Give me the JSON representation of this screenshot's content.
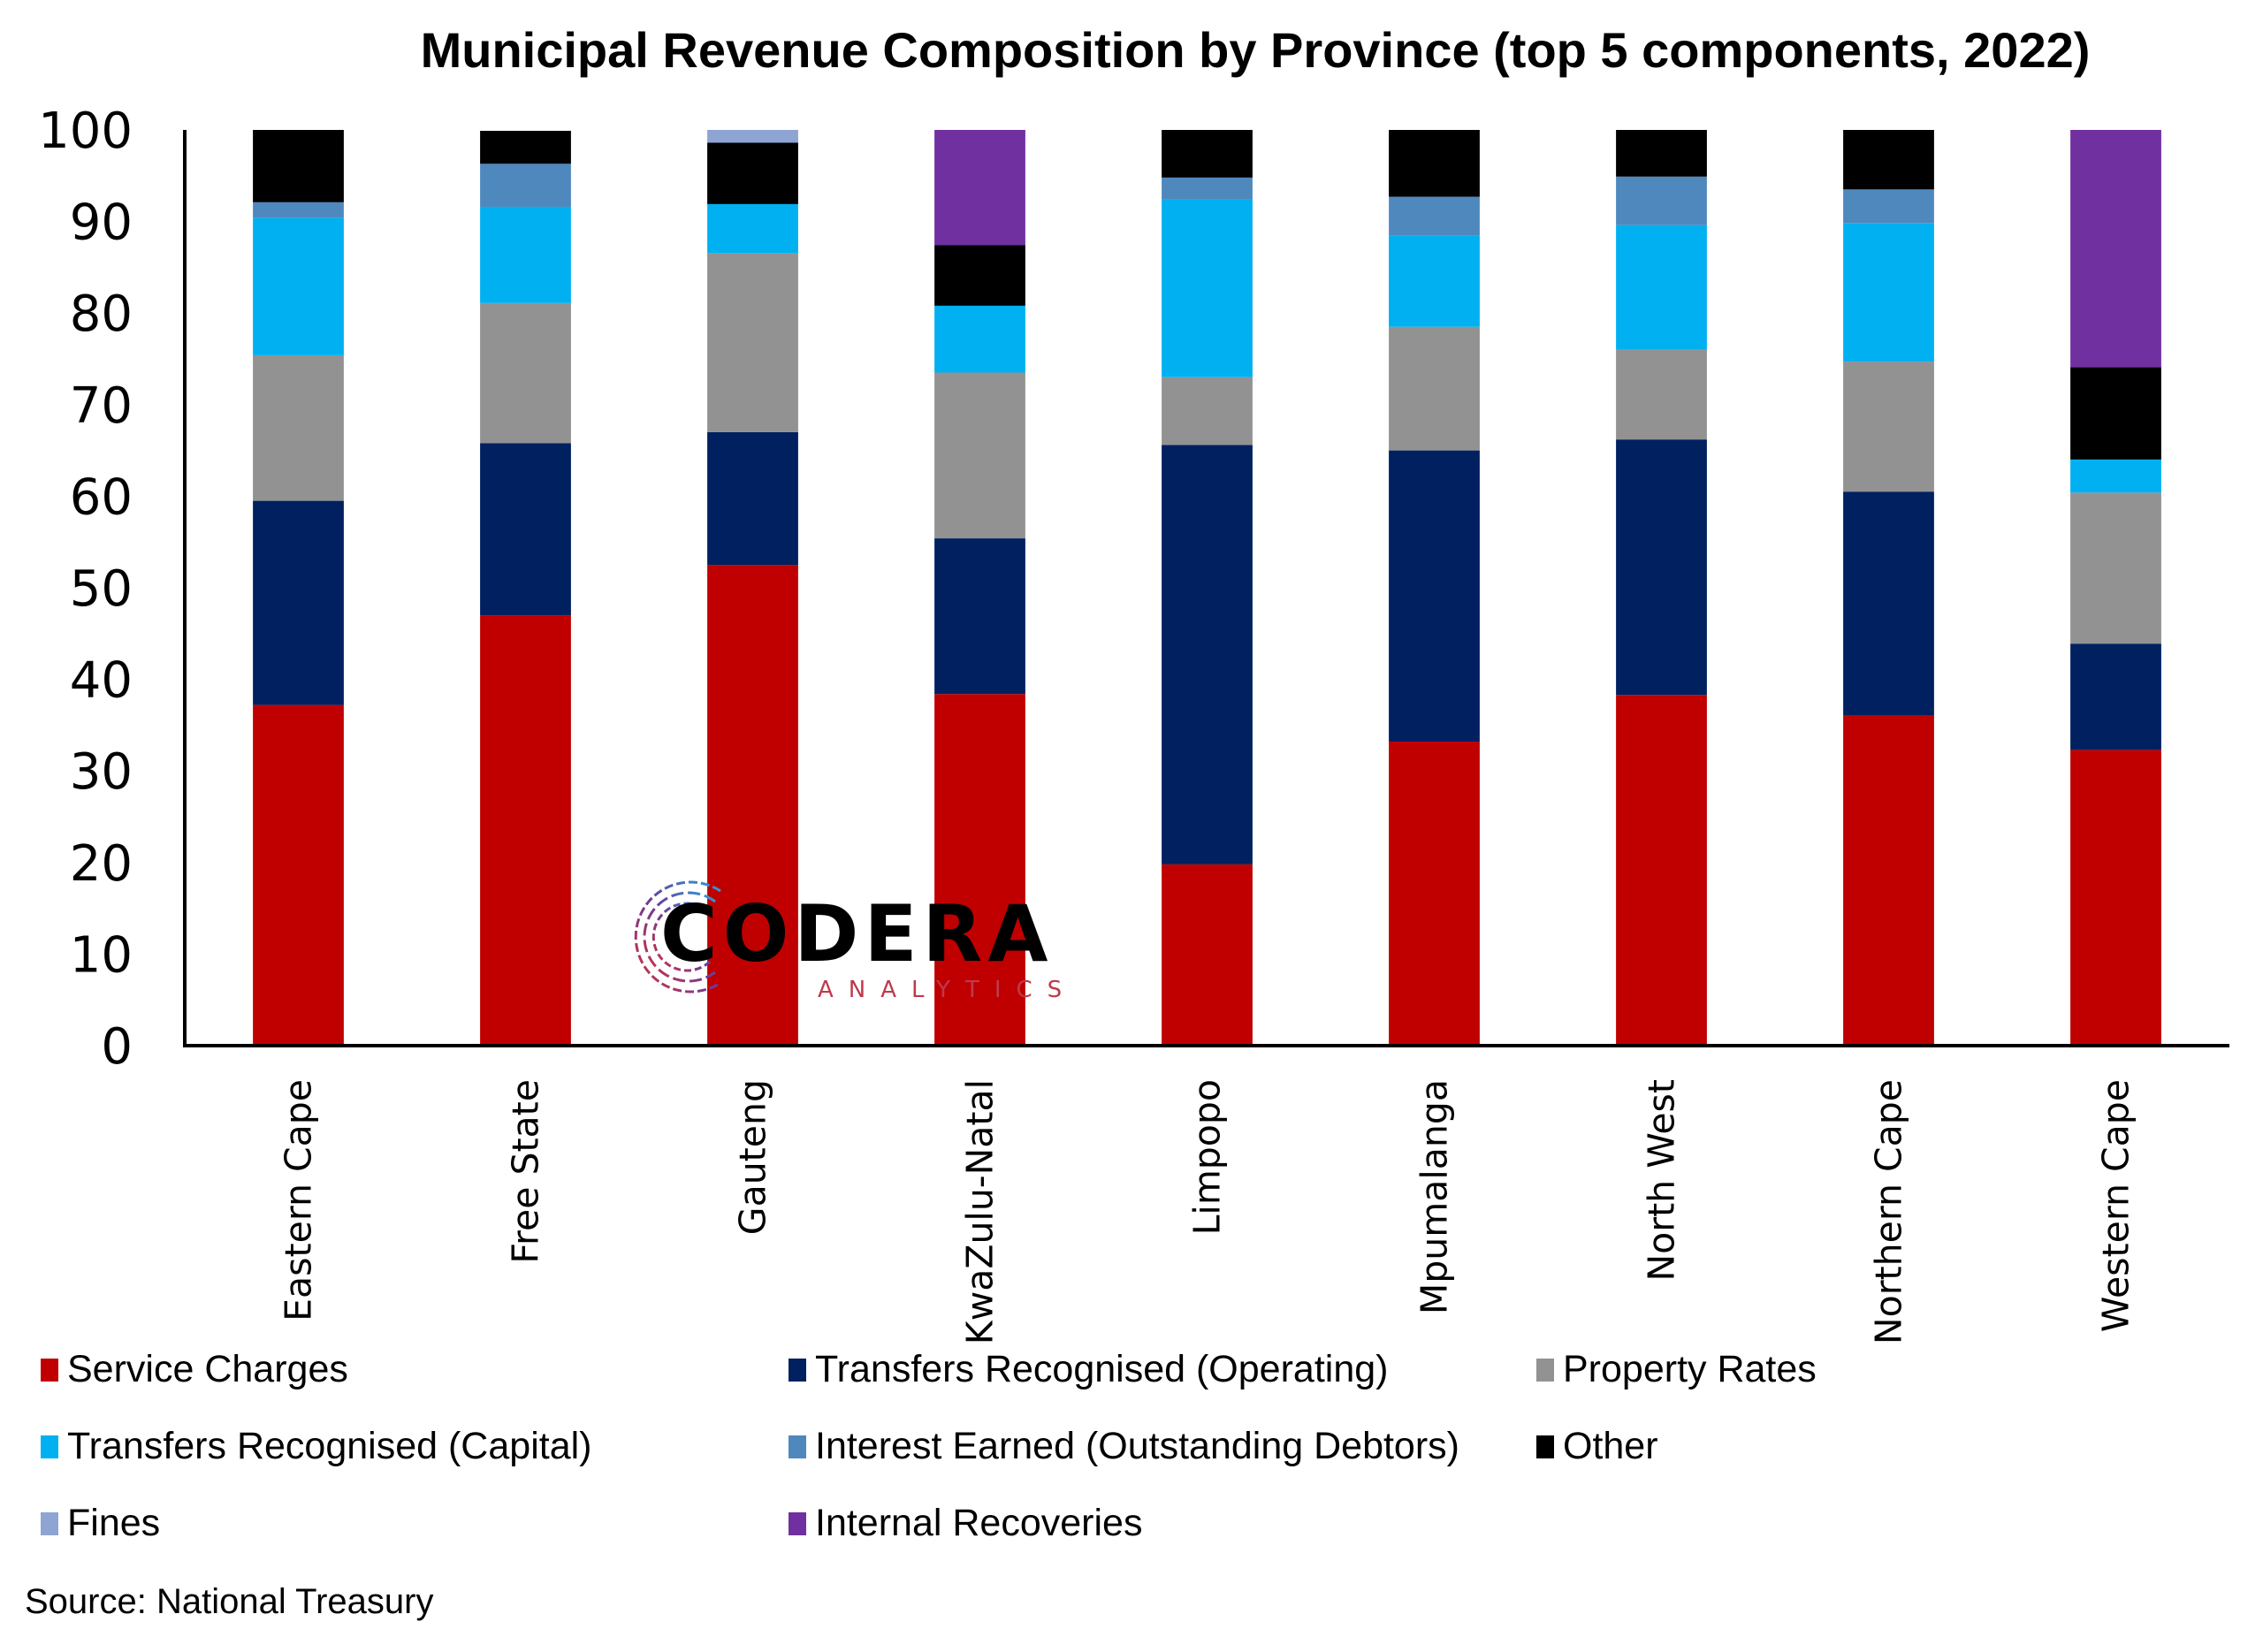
{
  "chart_data": {
    "type": "bar",
    "stacked": true,
    "title": "Municipal Revenue Composition by Province (top 5 components, 2022)",
    "xlabel": "",
    "ylabel": "",
    "ylim": [
      0,
      100
    ],
    "yticks": [
      "0",
      "10",
      "20",
      "30",
      "40",
      "50",
      "60",
      "70",
      "80",
      "90",
      "100"
    ],
    "grid": false,
    "legend_position": "bottom",
    "categories": [
      "Eastern Cape",
      "Free State",
      "Gauteng",
      "KwaZulu-Natal",
      "Limpopo",
      "Mpumalanga",
      "North West",
      "Northern Cape",
      "Western Cape"
    ],
    "series": [
      {
        "name": "Service Charges",
        "color": "#c00000",
        "values": [
          37.2,
          47.0,
          52.5,
          38.4,
          19.8,
          33.2,
          38.3,
          36.1,
          32.3
        ]
      },
      {
        "name": "Transfers Recognised (Operating)",
        "color": "#002060",
        "values": [
          22.3,
          18.8,
          14.5,
          17.0,
          45.8,
          31.8,
          27.9,
          24.4,
          11.6
        ]
      },
      {
        "name": "Property Rates",
        "color": "#929292",
        "values": [
          15.9,
          15.3,
          19.5,
          18.1,
          7.4,
          13.5,
          9.8,
          14.2,
          16.5
        ]
      },
      {
        "name": "Transfers Recognised (Capital)",
        "color": "#00b0f0",
        "values": [
          15.0,
          10.5,
          5.4,
          7.3,
          19.4,
          10.0,
          13.6,
          15.1,
          3.6
        ]
      },
      {
        "name": "Interest Earned (Outstanding Debtors)",
        "color": "#4f88bd",
        "values": [
          1.7,
          4.7,
          0,
          0,
          2.4,
          4.2,
          5.3,
          3.7,
          0
        ]
      },
      {
        "name": "Other",
        "color": "#000000",
        "values": [
          7.9,
          3.6,
          6.7,
          6.6,
          5.2,
          7.3,
          5.1,
          6.5,
          10.1
        ]
      },
      {
        "name": "Fines",
        "color": "#8ea4d2",
        "values": [
          0,
          0,
          1.4,
          0,
          0,
          0,
          0,
          0,
          0
        ]
      },
      {
        "name": "Internal Recoveries",
        "color": "#7030a0",
        "values": [
          0,
          0,
          0,
          12.6,
          0,
          0,
          0,
          0,
          25.9
        ]
      }
    ]
  },
  "legend": {
    "rows": [
      [
        "Service Charges",
        "Transfers Recognised (Operating)",
        "Property Rates"
      ],
      [
        "Transfers Recognised (Capital)",
        "Interest Earned (Outstanding Debtors)",
        "Other"
      ],
      [
        "Fines",
        "Internal Recoveries"
      ]
    ]
  },
  "source": "Source: National Treasury",
  "watermark": {
    "name": "CODERA",
    "subtitle": "ANALYTICS"
  }
}
